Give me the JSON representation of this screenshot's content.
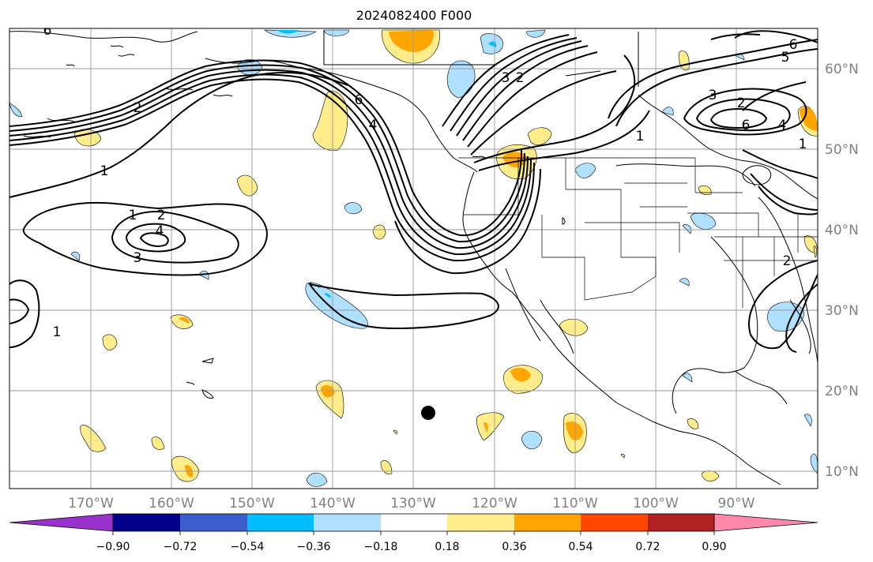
{
  "title": "2024082400 F000",
  "lon_labels": [
    "170°W",
    "160°W",
    "150°W",
    "140°W",
    "130°W",
    "120°W",
    "110°W",
    "100°W",
    "90°W"
  ],
  "lat_labels": [
    "60°N",
    "50°N",
    "40°N",
    "30°N",
    "20°N",
    "10°N"
  ],
  "contour_labels": [
    "6",
    "3",
    "2",
    "6",
    "4",
    "2",
    "1",
    "1",
    "2",
    "4",
    "3",
    "1",
    "5",
    "6",
    "3",
    "2",
    "4",
    "6",
    "1",
    "2",
    "1"
  ],
  "colorbar": {
    "tick_labels": [
      "−0.90",
      "−0.72",
      "−0.54",
      "−0.36",
      "−0.18",
      "0.18",
      "0.36",
      "0.54",
      "0.72",
      "0.90"
    ],
    "colors": [
      "#9932cc",
      "#00008b",
      "#3a5fcd",
      "#00bfff",
      "#afe0ff",
      "#ffffff",
      "#ffec8b",
      "#ffa500",
      "#ff4500",
      "#b22222",
      "#ff88aa"
    ]
  },
  "colors": {
    "neg_light": "#afe0ff",
    "neg_mid": "#00bfff",
    "pos_light": "#ffec8b",
    "pos_mid": "#ffa500",
    "contour": "#000000",
    "grid": "#9a9a9a",
    "axis_label": "#808080"
  }
}
